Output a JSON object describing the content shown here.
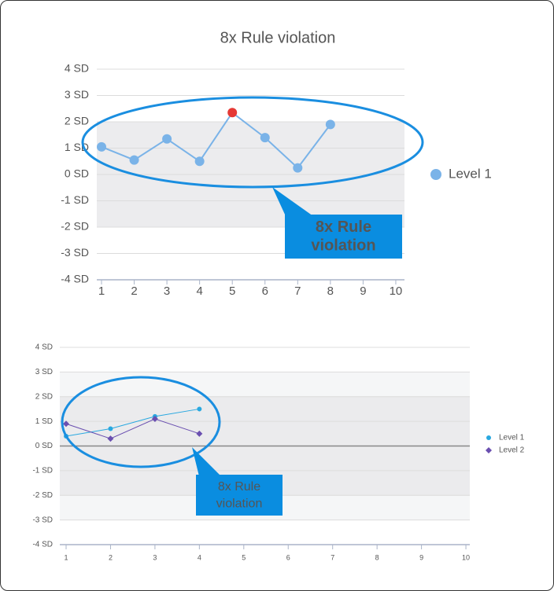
{
  "chart_data": [
    {
      "type": "line",
      "title": "8x Rule violation",
      "categories": [
        "1",
        "2",
        "3",
        "4",
        "5",
        "6",
        "7",
        "8",
        "9",
        "10"
      ],
      "series": [
        {
          "name": "Level 1",
          "color": "#7ab3e8",
          "marker": "circle",
          "values": [
            1.05,
            0.55,
            1.35,
            0.5,
            2.35,
            1.4,
            0.25,
            1.9,
            null,
            null
          ],
          "point_colors": [
            null,
            null,
            null,
            null,
            "#e53935",
            null,
            null,
            null,
            null,
            null
          ]
        }
      ],
      "ylim": [
        -4,
        4
      ],
      "yticks": [
        {
          "value": 4,
          "label": "4 SD"
        },
        {
          "value": 3,
          "label": "3 SD"
        },
        {
          "value": 2,
          "label": "2 SD"
        },
        {
          "value": 1,
          "label": "1 SD"
        },
        {
          "value": 0,
          "label": "0 SD"
        },
        {
          "value": -1,
          "label": "-1 SD"
        },
        {
          "value": -2,
          "label": "-2 SD"
        },
        {
          "value": -3,
          "label": "-3 SD"
        },
        {
          "value": -4,
          "label": "-4 SD"
        }
      ],
      "bands": [
        {
          "from": -2,
          "to": 2,
          "color": "#ececee"
        }
      ],
      "grid": true,
      "legend": "right",
      "annotation": [
        "8x Rule",
        "violation"
      ]
    },
    {
      "type": "line",
      "categories": [
        "1",
        "2",
        "3",
        "4",
        "5",
        "6",
        "7",
        "8",
        "9",
        "10"
      ],
      "series": [
        {
          "name": "Level 1",
          "color": "#29a8e0",
          "marker": "circle",
          "values": [
            0.4,
            0.7,
            1.2,
            1.5,
            null,
            null,
            null,
            null,
            null,
            null
          ]
        },
        {
          "name": "Level 2",
          "color": "#6a4fb0",
          "marker": "diamond",
          "values": [
            0.9,
            0.3,
            1.1,
            0.5,
            null,
            null,
            null,
            null,
            null,
            null
          ]
        }
      ],
      "ylim": [
        -4,
        4
      ],
      "yticks": [
        {
          "value": 4,
          "label": "4 SD"
        },
        {
          "value": 3,
          "label": "3 SD"
        },
        {
          "value": 2,
          "label": "2 SD"
        },
        {
          "value": 1,
          "label": "1 SD"
        },
        {
          "value": 0,
          "label": "0 SD"
        },
        {
          "value": -1,
          "label": "-1 SD"
        },
        {
          "value": -2,
          "label": "-2 SD"
        },
        {
          "value": -3,
          "label": "-3 SD"
        },
        {
          "value": -4,
          "label": "-4 SD"
        }
      ],
      "bands": [
        {
          "from": -3,
          "to": 3,
          "color": "#f5f6f7"
        },
        {
          "from": -2,
          "to": 2,
          "color": "#ebebed"
        }
      ],
      "grid": true,
      "zero_line": true,
      "legend": "right",
      "annotation": [
        "8x Rule",
        "violation"
      ]
    }
  ]
}
